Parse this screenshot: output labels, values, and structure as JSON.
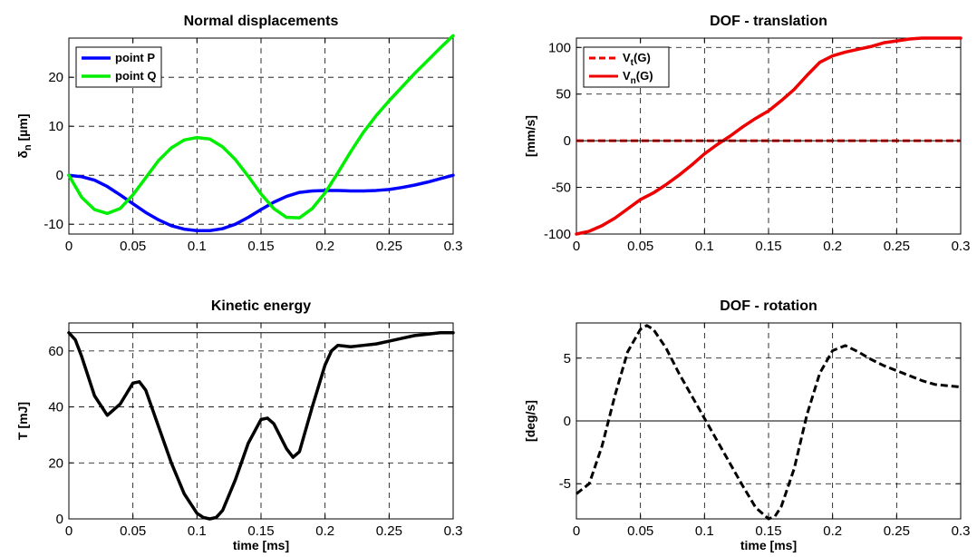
{
  "chart_data": [
    {
      "id": "normal",
      "type": "line",
      "title": "Normal displacements",
      "ylabel": "δn [µm]",
      "ylabel_main": "δ",
      "ylabel_sub": "n",
      "ylabel_unit": " [µm]",
      "xlabel": "",
      "xlim": [
        0,
        0.3
      ],
      "ylim": [
        -12,
        28
      ],
      "xticks": [
        0,
        0.05,
        0.1,
        0.15,
        0.2,
        0.25,
        0.3
      ],
      "xtick_labels": [
        "0",
        "0.05",
        "0.1",
        "0.15",
        "0.2",
        "0.25",
        "0.3"
      ],
      "yticks": [
        -10,
        0,
        10,
        20
      ],
      "ytick_labels": [
        "-10",
        "0",
        "10",
        "20"
      ],
      "grid": true,
      "legend": "top-left",
      "series": [
        {
          "name": "point P",
          "color": "#0000ff",
          "style": "solid",
          "x": [
            0,
            0.01,
            0.02,
            0.03,
            0.04,
            0.05,
            0.06,
            0.07,
            0.08,
            0.09,
            0.1,
            0.11,
            0.12,
            0.13,
            0.14,
            0.15,
            0.16,
            0.17,
            0.18,
            0.19,
            0.2,
            0.21,
            0.22,
            0.23,
            0.24,
            0.25,
            0.26,
            0.27,
            0.28,
            0.29,
            0.3
          ],
          "y": [
            0,
            -0.3,
            -1.0,
            -2.3,
            -4.0,
            -5.8,
            -7.6,
            -9.1,
            -10.3,
            -11.0,
            -11.3,
            -11.3,
            -10.9,
            -10.0,
            -8.6,
            -7.0,
            -5.5,
            -4.3,
            -3.5,
            -3.2,
            -3.1,
            -3.1,
            -3.2,
            -3.2,
            -3.1,
            -2.9,
            -2.5,
            -2.0,
            -1.4,
            -0.7,
            0
          ]
        },
        {
          "name": "point Q",
          "color": "#00ee00",
          "style": "solid",
          "x": [
            0,
            0.01,
            0.02,
            0.03,
            0.04,
            0.05,
            0.06,
            0.07,
            0.08,
            0.09,
            0.1,
            0.11,
            0.12,
            0.13,
            0.14,
            0.15,
            0.16,
            0.17,
            0.18,
            0.19,
            0.2,
            0.21,
            0.22,
            0.23,
            0.24,
            0.25,
            0.26,
            0.27,
            0.28,
            0.29,
            0.3
          ],
          "y": [
            0,
            -4.5,
            -7.0,
            -7.8,
            -6.8,
            -4.0,
            -0.5,
            3.0,
            5.6,
            7.2,
            7.7,
            7.4,
            5.8,
            3.2,
            -0.2,
            -3.8,
            -6.8,
            -8.6,
            -8.7,
            -6.8,
            -3.6,
            0.5,
            4.8,
            8.8,
            12.2,
            15.2,
            18.0,
            20.8,
            23.4,
            26.0,
            28.5
          ]
        }
      ]
    },
    {
      "id": "translation",
      "type": "line",
      "title": "DOF - translation",
      "ylabel": "[mm/s]",
      "xlabel": "",
      "xlim": [
        0,
        0.3
      ],
      "ylim": [
        -100,
        110
      ],
      "xticks": [
        0,
        0.05,
        0.1,
        0.15,
        0.2,
        0.25,
        0.3
      ],
      "xtick_labels": [
        "0",
        "0.05",
        "0.1",
        "0.15",
        "0.2",
        "0.25",
        "0.3"
      ],
      "yticks": [
        -100,
        -50,
        0,
        50,
        100
      ],
      "ytick_labels": [
        "-100",
        "-50",
        "0",
        "50",
        "100"
      ],
      "grid": true,
      "legend": "top-left",
      "series": [
        {
          "name": "Vt(G)",
          "name_main": "V",
          "name_sub": "t",
          "name_suffix": "(G)",
          "color": "#ee0000",
          "style": "dashed",
          "x": [
            0,
            0.3
          ],
          "y": [
            0,
            0
          ]
        },
        {
          "name": "Vn(G)",
          "name_main": "V",
          "name_sub": "n",
          "name_suffix": "(G)",
          "color": "#ee0000",
          "style": "solid",
          "x": [
            0,
            0.01,
            0.02,
            0.03,
            0.04,
            0.05,
            0.06,
            0.07,
            0.08,
            0.09,
            0.1,
            0.11,
            0.12,
            0.13,
            0.14,
            0.15,
            0.16,
            0.17,
            0.18,
            0.19,
            0.2,
            0.21,
            0.22,
            0.23,
            0.24,
            0.25,
            0.26,
            0.27,
            0.28,
            0.29,
            0.3
          ],
          "y": [
            -100,
            -97,
            -91,
            -83,
            -73,
            -63,
            -56,
            -47,
            -37,
            -26,
            -14,
            -4,
            5,
            15,
            24,
            32,
            43,
            55,
            70,
            84,
            91,
            95,
            98,
            101,
            105,
            107,
            109,
            110,
            110,
            110,
            110
          ]
        },
        {
          "name": "",
          "color": "#000000",
          "style": "thin",
          "x": [
            0,
            0.3
          ],
          "y": [
            0,
            0
          ]
        }
      ]
    },
    {
      "id": "kinetic",
      "type": "line",
      "title": "Kinetic energy",
      "ylabel": "T [mJ]",
      "xlabel": "time [ms]",
      "xlim": [
        0,
        0.3
      ],
      "ylim": [
        0,
        70
      ],
      "xticks": [
        0,
        0.05,
        0.1,
        0.15,
        0.2,
        0.25,
        0.3
      ],
      "xtick_labels": [
        "0",
        "0.05",
        "0.1",
        "0.15",
        "0.2",
        "0.25",
        "0.3"
      ],
      "yticks": [
        0,
        20,
        40,
        60
      ],
      "ytick_labels": [
        "0",
        "20",
        "40",
        "60"
      ],
      "grid": true,
      "legend": "none",
      "series": [
        {
          "name": "",
          "color": "#000000",
          "style": "thin",
          "x": [
            0,
            0.3
          ],
          "y": [
            66.5,
            66.5
          ]
        },
        {
          "name": "",
          "color": "#000000",
          "style": "bold",
          "x": [
            0,
            0.005,
            0.01,
            0.02,
            0.03,
            0.04,
            0.05,
            0.055,
            0.06,
            0.07,
            0.08,
            0.09,
            0.1,
            0.105,
            0.11,
            0.115,
            0.12,
            0.13,
            0.14,
            0.15,
            0.155,
            0.16,
            0.17,
            0.175,
            0.18,
            0.19,
            0.2,
            0.205,
            0.21,
            0.22,
            0.23,
            0.24,
            0.25,
            0.26,
            0.27,
            0.28,
            0.29,
            0.3
          ],
          "y": [
            66.5,
            64,
            58,
            44,
            37,
            41,
            48.5,
            49,
            46,
            33,
            20,
            9,
            2,
            0.5,
            0,
            0.5,
            3,
            14,
            27,
            35.5,
            36,
            34,
            25,
            22,
            24,
            40,
            55,
            60,
            62,
            61.5,
            62,
            62.5,
            63.5,
            64.5,
            65.5,
            66,
            66.5,
            66.5
          ]
        }
      ]
    },
    {
      "id": "rotation",
      "type": "line",
      "title": "DOF - rotation",
      "ylabel": "[deg/s]",
      "xlabel": "time [ms]",
      "xlim": [
        0,
        0.3
      ],
      "ylim": [
        -7.8,
        7.8
      ],
      "xticks": [
        0,
        0.05,
        0.1,
        0.15,
        0.2,
        0.25,
        0.3
      ],
      "xtick_labels": [
        "0",
        "0.05",
        "0.1",
        "0.15",
        "0.2",
        "0.25",
        "0.3"
      ],
      "yticks": [
        -5,
        0,
        5
      ],
      "ytick_labels": [
        "-5",
        "0",
        "5"
      ],
      "grid": true,
      "legend": "none",
      "series": [
        {
          "name": "",
          "color": "#000000",
          "style": "thin",
          "x": [
            0,
            0.3
          ],
          "y": [
            0,
            0
          ]
        },
        {
          "name": "",
          "color": "#000000",
          "style": "dashed",
          "x": [
            0,
            0.01,
            0.02,
            0.03,
            0.04,
            0.05,
            0.055,
            0.06,
            0.07,
            0.08,
            0.09,
            0.1,
            0.11,
            0.12,
            0.13,
            0.14,
            0.15,
            0.155,
            0.16,
            0.17,
            0.18,
            0.19,
            0.2,
            0.21,
            0.22,
            0.23,
            0.24,
            0.25,
            0.26,
            0.27,
            0.28,
            0.29,
            0.3
          ],
          "y": [
            -5.8,
            -5.0,
            -2.0,
            2.0,
            5.5,
            7.3,
            7.6,
            7.3,
            5.8,
            3.8,
            2.0,
            0.2,
            -1.6,
            -3.4,
            -5.2,
            -6.9,
            -7.8,
            -7.6,
            -6.8,
            -3.8,
            0.5,
            3.8,
            5.6,
            6.0,
            5.5,
            4.9,
            4.4,
            4.0,
            3.6,
            3.2,
            2.9,
            2.8,
            2.7
          ]
        }
      ]
    }
  ]
}
